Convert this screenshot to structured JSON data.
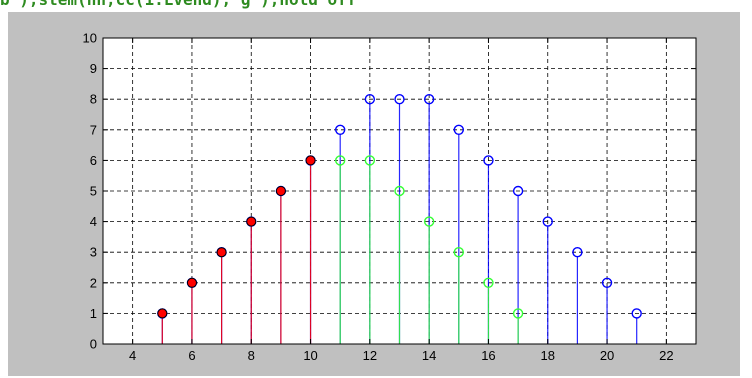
{
  "header": {
    "code_fragment": "b'),stem(nn,cc(1:Lvend),'g'),hold off"
  },
  "chart_data": {
    "type": "stem",
    "xlim": [
      3,
      23
    ],
    "ylim": [
      0,
      10
    ],
    "x_ticks": [
      4,
      6,
      8,
      10,
      12,
      14,
      16,
      18,
      20,
      22
    ],
    "y_ticks": [
      0,
      1,
      2,
      3,
      4,
      5,
      6,
      7,
      8,
      9,
      10
    ],
    "grid": true,
    "grid_style": "dashed",
    "series": [
      {
        "color": "#0000ff",
        "marker": "open-circle",
        "x": [
          5,
          6,
          7,
          8,
          9,
          10,
          11,
          12,
          13,
          14,
          15,
          16,
          17,
          18,
          19,
          20,
          21
        ],
        "values": [
          1,
          2,
          3,
          4,
          5,
          6,
          7,
          8,
          8,
          8,
          7,
          6,
          5,
          4,
          3,
          2,
          1
        ]
      },
      {
        "color": "#ff0000",
        "marker": "filled-circle",
        "x": [
          5,
          6,
          7,
          8,
          9,
          10
        ],
        "values": [
          1,
          2,
          3,
          4,
          5,
          6
        ]
      },
      {
        "color": "#33ff33",
        "marker": "open-circle",
        "x": [
          11,
          12,
          13,
          14,
          15,
          16,
          17
        ],
        "values": [
          6,
          6,
          5,
          4,
          3,
          2,
          1
        ]
      }
    ]
  }
}
